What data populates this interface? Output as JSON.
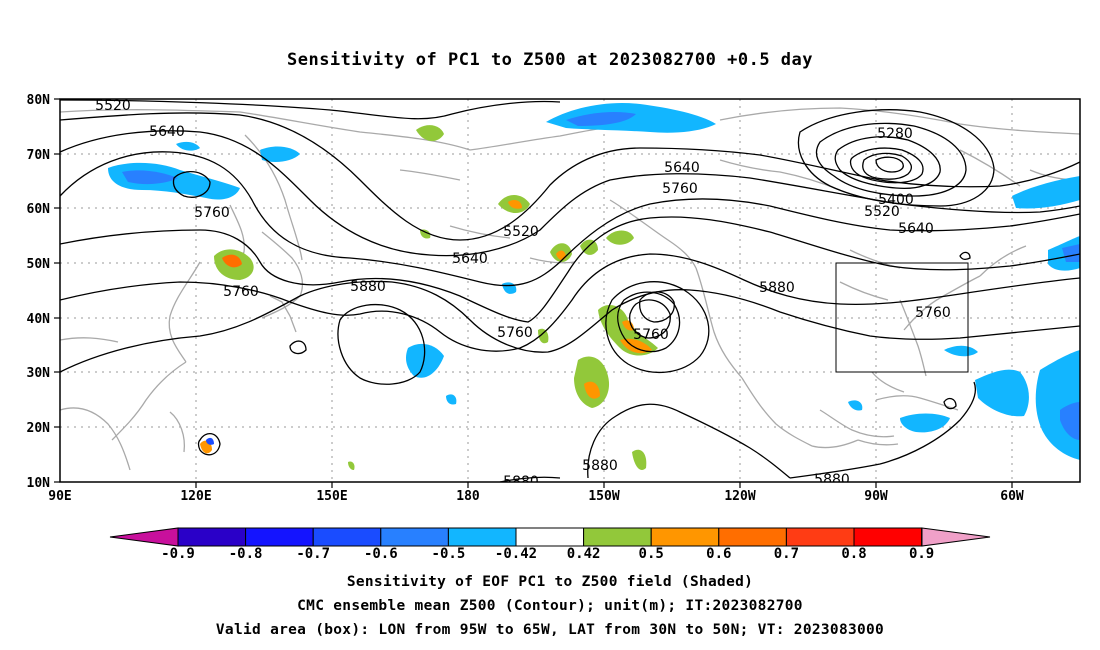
{
  "title": "Sensitivity of PC1 to Z500 at 2023082700 +0.5 day",
  "lat_labels": [
    "80N",
    "70N",
    "60N",
    "50N",
    "40N",
    "30N",
    "20N",
    "10N"
  ],
  "lon_labels": [
    "90E",
    "120E",
    "150E",
    "180",
    "150W",
    "120W",
    "90W",
    "60W"
  ],
  "contours": [
    {
      "label": "5520",
      "value": 5520
    },
    {
      "label": "5640",
      "value": 5640
    },
    {
      "label": "5760",
      "value": 5760
    },
    {
      "label": "5280",
      "value": 5280
    },
    {
      "label": "5640",
      "value": 5640
    },
    {
      "label": "5760",
      "value": 5760
    },
    {
      "label": "5400",
      "value": 5400
    },
    {
      "label": "5520",
      "value": 5520
    },
    {
      "label": "5640",
      "value": 5640
    },
    {
      "label": "5520",
      "value": 5520
    },
    {
      "label": "5640",
      "value": 5640
    },
    {
      "label": "5880",
      "value": 5880
    },
    {
      "label": "5760",
      "value": 5760
    },
    {
      "label": "5760",
      "value": 5760
    },
    {
      "label": "5760",
      "value": 5760
    },
    {
      "label": "5880",
      "value": 5880
    },
    {
      "label": "5760",
      "value": 5760
    },
    {
      "label": "5880",
      "value": 5880
    },
    {
      "label": "5880",
      "value": 5880
    },
    {
      "label": "5880",
      "value": 5880
    }
  ],
  "colorbar": {
    "labels": [
      "-0.9",
      "-0.8",
      "-0.7",
      "-0.6",
      "-0.5",
      "-0.42",
      "0.42",
      "0.5",
      "0.6",
      "0.7",
      "0.8",
      "0.9"
    ],
    "colors": [
      "#2a00c8",
      "#1414ff",
      "#1a4cff",
      "#2880ff",
      "#12b6ff",
      "#ffffff",
      "#92c83a",
      "#ff9600",
      "#ff6e00",
      "#ff3c14",
      "#ff0000"
    ],
    "low_color": "#c8109c",
    "high_color": "#f0a0c8"
  },
  "footer": {
    "line1": "Sensitivity of EOF PC1 to Z500 field (Shaded)",
    "line2": "CMC ensemble mean Z500 (Contour); unit(m); IT:2023082700",
    "line3": "Valid area (box): LON from 95W to 65W, LAT from 30N to 50N; VT: 2023083000"
  }
}
